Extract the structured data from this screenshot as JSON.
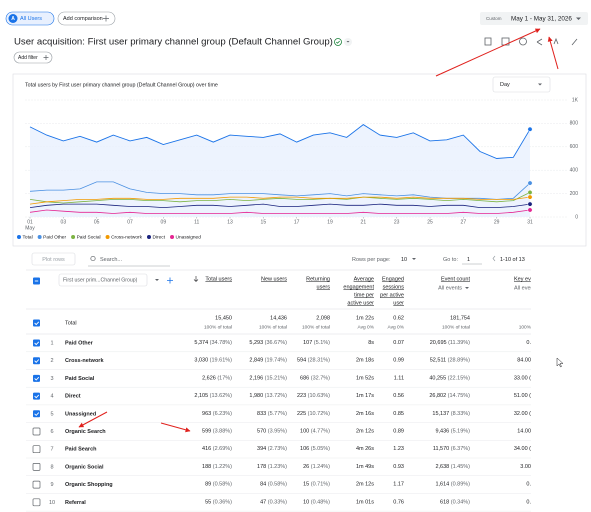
{
  "header": {
    "segment_icon": "A",
    "segment": "All Users",
    "add_comparison": "Add comparison",
    "date_prefix": "Custom",
    "date_range": "May 1 - May 31, 2026",
    "title": "User acquisition: First user primary channel group (Default Channel Group)",
    "add_filter": "Add filter"
  },
  "chart": {
    "type": "line",
    "title": "Total users by First user primary channel group (Default Channel Group) over time",
    "granularity": "Day",
    "month": "May",
    "x": [
      1,
      2,
      3,
      4,
      5,
      6,
      7,
      8,
      9,
      10,
      11,
      12,
      13,
      14,
      15,
      16,
      17,
      18,
      19,
      20,
      21,
      22,
      23,
      24,
      25,
      26,
      27,
      28,
      29,
      30,
      31
    ],
    "xlim": [
      1,
      31
    ],
    "xticks": [
      {
        "value": 1,
        "label": "01"
      },
      {
        "value": 3,
        "label": "03"
      },
      {
        "value": 5,
        "label": "05"
      },
      {
        "value": 7,
        "label": "07"
      },
      {
        "value": 9,
        "label": "09"
      },
      11,
      13,
      15,
      17,
      19,
      21,
      23,
      25,
      27,
      29,
      31
    ],
    "ylim": [
      0,
      1000
    ],
    "yticks": [
      {
        "value": 1000,
        "label": "1K"
      },
      800,
      600,
      400,
      200,
      0
    ],
    "grid": true,
    "series": [
      {
        "name": "Total",
        "color": "#1a73e8",
        "area": true,
        "values": [
          770,
          700,
          650,
          690,
          640,
          700,
          650,
          680,
          620,
          660,
          700,
          640,
          700,
          690,
          680,
          710,
          640,
          700,
          720,
          680,
          790,
          700,
          680,
          720,
          650,
          660,
          700,
          560,
          500,
          510,
          750
        ]
      },
      {
        "name": "Paid Other",
        "color": "#4a90e2",
        "values": [
          220,
          230,
          230,
          240,
          300,
          300,
          240,
          210,
          200,
          200,
          190,
          190,
          200,
          200,
          200,
          190,
          180,
          190,
          200,
          180,
          200,
          190,
          180,
          190,
          170,
          160,
          160,
          160,
          150,
          160,
          290
        ]
      },
      {
        "name": "Paid Social",
        "color": "#7cb342",
        "values": [
          150,
          130,
          120,
          130,
          140,
          150,
          150,
          140,
          140,
          130,
          140,
          140,
          150,
          140,
          150,
          160,
          150,
          150,
          160,
          150,
          170,
          160,
          150,
          160,
          150,
          140,
          150,
          140,
          130,
          140,
          210
        ]
      },
      {
        "name": "Cross-network",
        "color": "#f29900",
        "values": [
          110,
          130,
          140,
          150,
          150,
          160,
          160,
          150,
          150,
          160,
          160,
          160,
          170,
          170,
          160,
          170,
          170,
          160,
          160,
          160,
          170,
          170,
          160,
          170,
          160,
          160,
          160,
          150,
          150,
          150,
          170
        ]
      },
      {
        "name": "Direct",
        "color": "#1a237e",
        "values": [
          80,
          100,
          110,
          110,
          110,
          100,
          90,
          90,
          80,
          90,
          100,
          100,
          90,
          100,
          110,
          90,
          90,
          100,
          110,
          100,
          100,
          110,
          100,
          100,
          90,
          100,
          100,
          80,
          80,
          90,
          110
        ]
      },
      {
        "name": "Unassigned",
        "color": "#e52592",
        "values": [
          40,
          60,
          50,
          40,
          40,
          30,
          40,
          30,
          30,
          30,
          30,
          30,
          30,
          40,
          30,
          30,
          30,
          30,
          30,
          30,
          40,
          30,
          30,
          30,
          30,
          30,
          40,
          30,
          30,
          40,
          60
        ]
      }
    ]
  },
  "table": {
    "plot_rows": "Plot rows",
    "search": "Search...",
    "rows_per_page_label": "Rows per page:",
    "rows_per_page": "10",
    "go_to_label": "Go to:",
    "go_to": "1",
    "pagination": "1-10 of 13",
    "dimension": "First user prim...Channel Group)",
    "columns": [
      {
        "lines": [
          "Total users"
        ]
      },
      {
        "lines": [
          "New users"
        ]
      },
      {
        "lines": [
          "Returning",
          "users"
        ]
      },
      {
        "lines": [
          "Average",
          "engagement",
          "time per",
          "active user"
        ]
      },
      {
        "lines": [
          "Engaged",
          "sessions",
          "per active",
          "user"
        ]
      },
      {
        "lines": [
          "Event count"
        ],
        "sub": "All events"
      },
      {
        "lines": [
          "Key ev"
        ],
        "sub": "All even"
      }
    ],
    "total": {
      "label": "Total",
      "cells": [
        [
          "15,450",
          "100% of total"
        ],
        [
          "14,436",
          "100% of total"
        ],
        [
          "2,098",
          "100% of total"
        ],
        [
          "1m 22s",
          "Avg 0%"
        ],
        [
          "0.62",
          "Avg 0%"
        ],
        [
          "181,754",
          "100% of total"
        ],
        [
          "100%"
        ]
      ]
    },
    "rows": [
      {
        "n": "1",
        "name": "Paid Other",
        "selected": true,
        "cells": [
          [
            "5,374",
            "(34.78%)"
          ],
          [
            "5,293",
            "(36.67%)"
          ],
          [
            "107",
            "(5.1%)"
          ],
          [
            "8s"
          ],
          [
            "0.07"
          ],
          [
            "20,695",
            "(11.39%)"
          ],
          [
            "0."
          ]
        ]
      },
      {
        "n": "2",
        "name": "Cross-network",
        "selected": true,
        "cells": [
          [
            "3,030",
            "(19.61%)"
          ],
          [
            "2,849",
            "(19.74%)"
          ],
          [
            "594",
            "(28.31%)"
          ],
          [
            "2m 18s"
          ],
          [
            "0.99"
          ],
          [
            "52,511",
            "(28.89%)"
          ],
          [
            "84.00"
          ]
        ]
      },
      {
        "n": "3",
        "name": "Paid Social",
        "selected": true,
        "cells": [
          [
            "2,626",
            "(17%)"
          ],
          [
            "2,196",
            "(15.21%)"
          ],
          [
            "686",
            "(32.7%)"
          ],
          [
            "1m 52s"
          ],
          [
            "1.11"
          ],
          [
            "40,255",
            "(22.15%)"
          ],
          [
            "33.00 ("
          ]
        ]
      },
      {
        "n": "4",
        "name": "Direct",
        "selected": true,
        "cells": [
          [
            "2,105",
            "(13.62%)"
          ],
          [
            "1,980",
            "(13.72%)"
          ],
          [
            "223",
            "(10.63%)"
          ],
          [
            "1m 17s"
          ],
          [
            "0.56"
          ],
          [
            "26,802",
            "(14.75%)"
          ],
          [
            "51.00 ("
          ]
        ]
      },
      {
        "n": "5",
        "name": "Unassigned",
        "selected": true,
        "cells": [
          [
            "963",
            "(6.23%)"
          ],
          [
            "833",
            "(5.77%)"
          ],
          [
            "225",
            "(10.72%)"
          ],
          [
            "2m 16s"
          ],
          [
            "0.85"
          ],
          [
            "15,137",
            "(8.33%)"
          ],
          [
            "32.00 ("
          ]
        ]
      },
      {
        "n": "6",
        "name": "Organic Search",
        "selected": false,
        "cells": [
          [
            "599",
            "(3.88%)"
          ],
          [
            "570",
            "(3.95%)"
          ],
          [
            "100",
            "(4.77%)"
          ],
          [
            "2m 12s"
          ],
          [
            "0.89"
          ],
          [
            "9,436",
            "(5.19%)"
          ],
          [
            "14.00"
          ]
        ]
      },
      {
        "n": "7",
        "name": "Paid Search",
        "selected": false,
        "cells": [
          [
            "416",
            "(2.69%)"
          ],
          [
            "394",
            "(2.73%)"
          ],
          [
            "106",
            "(5.05%)"
          ],
          [
            "4m 26s"
          ],
          [
            "1.23"
          ],
          [
            "11,570",
            "(6.37%)"
          ],
          [
            "34.00 ("
          ]
        ]
      },
      {
        "n": "8",
        "name": "Organic Social",
        "selected": false,
        "cells": [
          [
            "188",
            "(1.22%)"
          ],
          [
            "178",
            "(1.23%)"
          ],
          [
            "26",
            "(1.24%)"
          ],
          [
            "1m 49s"
          ],
          [
            "0.93"
          ],
          [
            "2,638",
            "(1.45%)"
          ],
          [
            "3.00"
          ]
        ]
      },
      {
        "n": "9",
        "name": "Organic Shopping",
        "selected": false,
        "cells": [
          [
            "89",
            "(0.58%)"
          ],
          [
            "84",
            "(0.58%)"
          ],
          [
            "15",
            "(0.71%)"
          ],
          [
            "2m 12s"
          ],
          [
            "1.17"
          ],
          [
            "1,614",
            "(0.89%)"
          ],
          [
            "0."
          ]
        ]
      },
      {
        "n": "10",
        "name": "Referral",
        "selected": false,
        "cells": [
          [
            "55",
            "(0.36%)"
          ],
          [
            "47",
            "(0.33%)"
          ],
          [
            "10",
            "(0.48%)"
          ],
          [
            "1m 01s"
          ],
          [
            "0.76"
          ],
          [
            "618",
            "(0.34%)"
          ],
          [
            "0."
          ]
        ]
      }
    ]
  }
}
